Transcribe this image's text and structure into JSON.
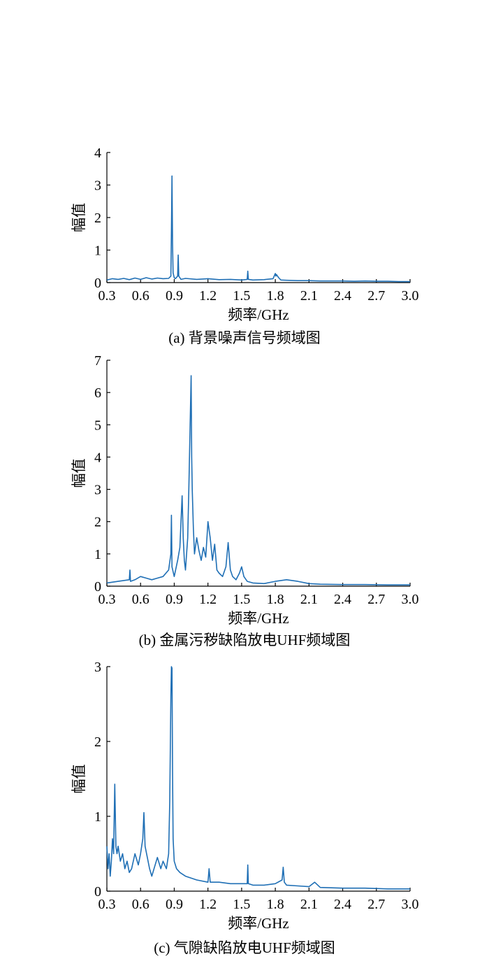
{
  "chart_data": [
    {
      "type": "line",
      "caption": "(a)  背景噪声信号频域图",
      "xlabel": "频率/GHz",
      "ylabel": "幅值",
      "xlim": [
        0.3,
        3.0
      ],
      "ylim": [
        0,
        4
      ],
      "xticks": [
        "0.3",
        "0.6",
        "0.9",
        "1.2",
        "1.5",
        "1.8",
        "2.1",
        "2.4",
        "2.7",
        "3.0"
      ],
      "yticks": [
        "0",
        "1",
        "2",
        "3",
        "4"
      ],
      "color": "#1f6fb5",
      "series": [
        {
          "x": [
            0.3,
            0.35,
            0.4,
            0.45,
            0.5,
            0.55,
            0.6,
            0.65,
            0.7,
            0.75,
            0.8,
            0.85,
            0.87,
            0.875,
            0.88,
            0.885,
            0.89,
            0.9,
            0.91,
            0.93,
            0.935,
            0.94,
            0.96,
            1.0,
            1.1,
            1.2,
            1.3,
            1.4,
            1.5,
            1.55,
            1.555,
            1.56,
            1.6,
            1.7,
            1.78,
            1.8,
            1.805,
            1.81,
            1.83,
            1.85,
            1.9,
            2.0,
            2.1,
            2.2,
            2.3,
            2.4,
            2.5,
            2.6,
            2.7,
            2.8,
            2.9,
            3.0
          ],
          "y": [
            0.08,
            0.12,
            0.1,
            0.13,
            0.09,
            0.14,
            0.1,
            0.15,
            0.11,
            0.14,
            0.12,
            0.13,
            0.2,
            1.6,
            3.28,
            1.2,
            0.3,
            0.15,
            0.12,
            0.2,
            0.85,
            0.2,
            0.1,
            0.13,
            0.1,
            0.12,
            0.09,
            0.1,
            0.08,
            0.1,
            0.35,
            0.1,
            0.08,
            0.09,
            0.12,
            0.28,
            0.2,
            0.25,
            0.15,
            0.08,
            0.07,
            0.06,
            0.06,
            0.05,
            0.05,
            0.05,
            0.04,
            0.05,
            0.04,
            0.04,
            0.03,
            0.03
          ]
        }
      ]
    },
    {
      "type": "line",
      "caption": "(b)  金属污秽缺陷放电UHF频域图",
      "xlabel": "频率/GHz",
      "ylabel": "幅值",
      "xlim": [
        0.3,
        3.0
      ],
      "ylim": [
        0,
        7
      ],
      "xticks": [
        "0.3",
        "0.6",
        "0.9",
        "1.2",
        "1.5",
        "1.8",
        "2.1",
        "2.4",
        "2.7",
        "3.0"
      ],
      "yticks": [
        "0",
        "1",
        "2",
        "3",
        "4",
        "5",
        "6",
        "7"
      ],
      "color": "#1f6fb5",
      "series": [
        {
          "x": [
            0.3,
            0.4,
            0.5,
            0.505,
            0.51,
            0.55,
            0.6,
            0.65,
            0.7,
            0.75,
            0.8,
            0.85,
            0.87,
            0.875,
            0.88,
            0.9,
            0.93,
            0.95,
            0.97,
            0.98,
            0.99,
            1.0,
            1.02,
            1.03,
            1.05,
            1.055,
            1.06,
            1.07,
            1.08,
            1.1,
            1.12,
            1.14,
            1.16,
            1.18,
            1.2,
            1.22,
            1.24,
            1.26,
            1.27,
            1.28,
            1.3,
            1.33,
            1.36,
            1.38,
            1.4,
            1.42,
            1.45,
            1.48,
            1.5,
            1.52,
            1.55,
            1.6,
            1.7,
            1.8,
            1.9,
            2.0,
            2.1,
            2.2,
            2.4,
            2.6,
            2.8,
            3.0
          ],
          "y": [
            0.1,
            0.15,
            0.2,
            0.5,
            0.15,
            0.2,
            0.3,
            0.25,
            0.2,
            0.25,
            0.3,
            0.5,
            1.0,
            2.2,
            0.6,
            0.3,
            0.8,
            1.2,
            2.8,
            1.5,
            0.8,
            0.5,
            1.5,
            3.0,
            6.52,
            4.0,
            3.0,
            1.8,
            1.0,
            1.5,
            1.1,
            0.8,
            1.2,
            0.9,
            2.0,
            1.5,
            0.8,
            1.3,
            0.9,
            0.5,
            0.4,
            0.3,
            0.6,
            1.35,
            0.5,
            0.3,
            0.2,
            0.4,
            0.6,
            0.3,
            0.15,
            0.1,
            0.08,
            0.15,
            0.2,
            0.15,
            0.08,
            0.06,
            0.05,
            0.05,
            0.04,
            0.04
          ]
        }
      ]
    },
    {
      "type": "line",
      "caption": "(c)  气隙缺陷放电UHF频域图",
      "xlabel": "频率/GHz",
      "ylabel": "幅值",
      "xlim": [
        0.3,
        3.0
      ],
      "ylim": [
        0,
        3
      ],
      "xticks": [
        "0.3",
        "0.6",
        "0.9",
        "1.2",
        "1.5",
        "1.8",
        "2.1",
        "2.4",
        "2.7",
        "3.0"
      ],
      "yticks": [
        "0",
        "1",
        "2",
        "3"
      ],
      "color": "#1f6fb5",
      "series": [
        {
          "x": [
            0.3,
            0.31,
            0.32,
            0.33,
            0.34,
            0.35,
            0.36,
            0.37,
            0.38,
            0.39,
            0.4,
            0.42,
            0.44,
            0.46,
            0.48,
            0.5,
            0.52,
            0.55,
            0.58,
            0.6,
            0.62,
            0.63,
            0.64,
            0.66,
            0.68,
            0.7,
            0.72,
            0.75,
            0.78,
            0.8,
            0.83,
            0.85,
            0.86,
            0.87,
            0.875,
            0.88,
            0.885,
            0.89,
            0.9,
            0.92,
            0.95,
            1.0,
            1.1,
            1.2,
            1.21,
            1.22,
            1.3,
            1.4,
            1.5,
            1.55,
            1.555,
            1.56,
            1.6,
            1.7,
            1.8,
            1.86,
            1.87,
            1.88,
            1.9,
            2.0,
            2.1,
            2.15,
            2.2,
            2.4,
            2.6,
            2.8,
            3.0
          ],
          "y": [
            0.6,
            0.3,
            0.5,
            0.2,
            0.4,
            0.7,
            0.5,
            1.43,
            0.6,
            0.5,
            0.6,
            0.4,
            0.5,
            0.3,
            0.4,
            0.25,
            0.3,
            0.5,
            0.35,
            0.5,
            0.7,
            1.05,
            0.6,
            0.45,
            0.3,
            0.2,
            0.3,
            0.45,
            0.3,
            0.4,
            0.3,
            0.5,
            1.2,
            2.6,
            3.0,
            2.98,
            1.6,
            0.7,
            0.4,
            0.3,
            0.25,
            0.2,
            0.15,
            0.12,
            0.3,
            0.12,
            0.12,
            0.1,
            0.1,
            0.1,
            0.35,
            0.1,
            0.08,
            0.08,
            0.1,
            0.15,
            0.32,
            0.12,
            0.08,
            0.07,
            0.06,
            0.12,
            0.05,
            0.04,
            0.04,
            0.03,
            0.03
          ]
        }
      ]
    }
  ]
}
